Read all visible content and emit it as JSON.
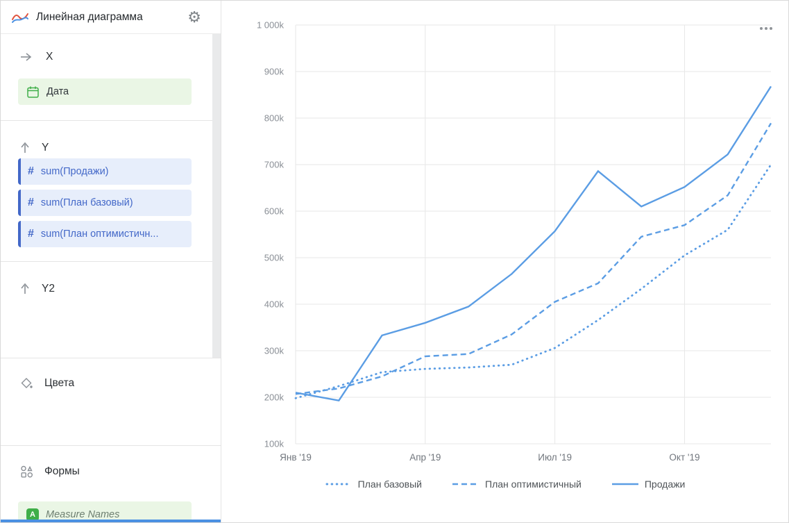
{
  "header": {
    "title": "Линейная диаграмма"
  },
  "icons": {
    "logo": "line-chart-logo",
    "gear": "settings-gear",
    "x_section": "arrow-right",
    "y_section": "arrow-up",
    "y2_section": "arrow-up",
    "colors_section": "paint-bucket",
    "shapes_section": "shapes",
    "date_field": "calendar",
    "measure_field": "hash",
    "measure_names": "letter-A-badge",
    "chart_menu": "ellipsis"
  },
  "sidebar": {
    "sections": {
      "x": {
        "label": "X",
        "field": {
          "label": "Дата"
        }
      },
      "y": {
        "label": "Y",
        "fields": [
          {
            "label": "sum(Продажи)"
          },
          {
            "label": "sum(План базовый)"
          },
          {
            "label": "sum(План оптимистичн..."
          }
        ]
      },
      "y2": {
        "label": "Y2"
      },
      "colors": {
        "label": "Цвета"
      },
      "shapes": {
        "label": "Формы",
        "field": {
          "label": "Measure Names"
        }
      }
    }
  },
  "chart_data": {
    "type": "line",
    "title": "",
    "unit": "thousands (k)",
    "ylim": [
      100,
      1000
    ],
    "y_ticks": [
      100,
      200,
      300,
      400,
      500,
      600,
      700,
      800,
      900,
      1000
    ],
    "y_tick_labels": [
      "100k",
      "200k",
      "300k",
      "400k",
      "500k",
      "600k",
      "700k",
      "800k",
      "900k",
      "1 000k"
    ],
    "x_points": 12,
    "x_tick_labels": [
      {
        "index": 0,
        "label": "Янв '19"
      },
      {
        "index": 3,
        "label": "Апр '19"
      },
      {
        "index": 6,
        "label": "Июл '19"
      },
      {
        "index": 9,
        "label": "Окт '19"
      }
    ],
    "series": [
      {
        "name": "План базовый",
        "style": "dotted",
        "values": [
          198,
          224,
          254,
          261,
          264,
          270,
          306,
          366,
          433,
          505,
          560,
          700
        ]
      },
      {
        "name": "План оптимистичный",
        "style": "dashed",
        "values": [
          207,
          219,
          245,
          288,
          293,
          335,
          405,
          445,
          545,
          570,
          634,
          789
        ]
      },
      {
        "name": "Продажи",
        "style": "solid",
        "values": [
          210,
          193,
          333,
          360,
          395,
          465,
          557,
          686,
          610,
          652,
          722,
          868
        ]
      }
    ],
    "legend_position": "bottom",
    "grid": true
  },
  "colors": {
    "line": "#5b9de4",
    "accent_blue": "#4368c8",
    "chip_blue_bg": "#e7eefb",
    "chip_green_bg": "#eaf6e5",
    "green": "#3fae49",
    "scroll_blue": "#4a90e2"
  }
}
